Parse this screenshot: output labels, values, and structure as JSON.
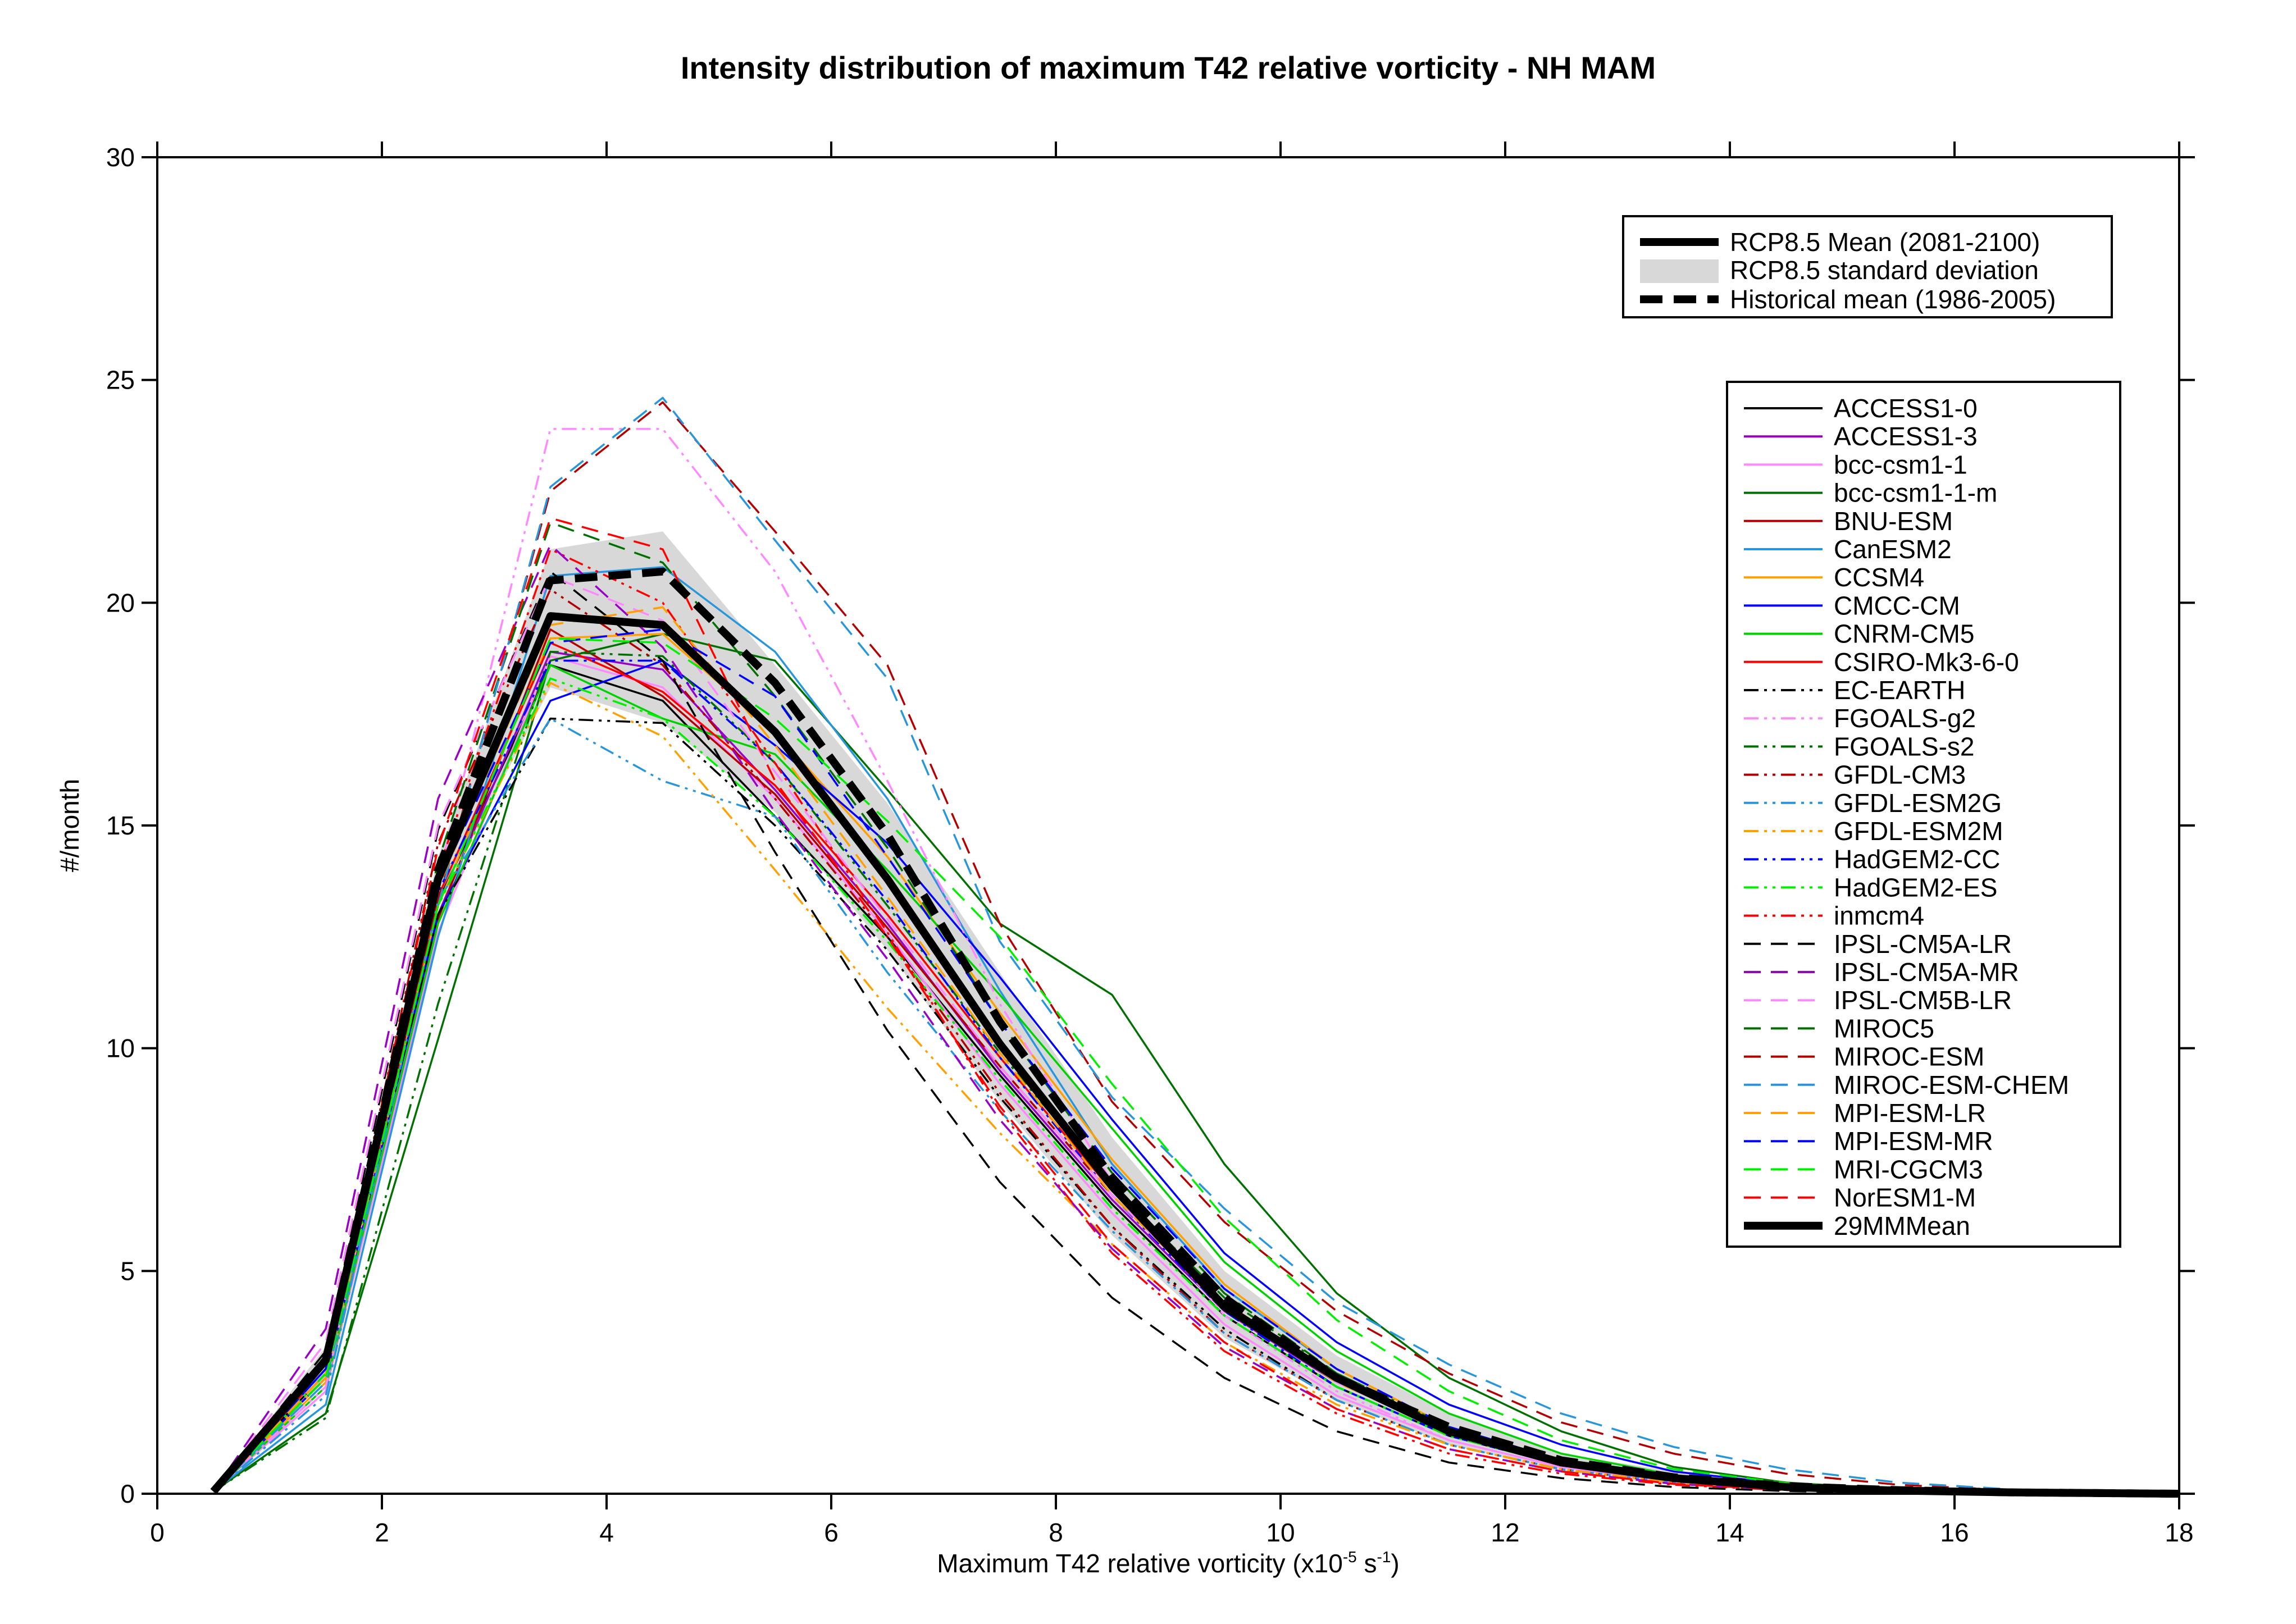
{
  "chart_data": {
    "type": "line",
    "title": "Intensity distribution of maximum T42 relative vorticity - NH MAM",
    "xlabel": "Maximum T42 relative vorticity (x10",
    "xlabel_exp1": "-5",
    "xlabel_mid": " s",
    "xlabel_exp2": "-1",
    "xlabel_end": ")",
    "ylabel": "#/month",
    "xlim": [
      0,
      18
    ],
    "ylim": [
      0,
      30
    ],
    "xticks": [
      0,
      2,
      4,
      6,
      8,
      10,
      12,
      14,
      16,
      18
    ],
    "yticks": [
      0,
      5,
      10,
      15,
      20,
      25,
      30
    ],
    "grid": false,
    "x": [
      0.5,
      1.5,
      2.5,
      3.5,
      4.5,
      5.5,
      6.5,
      7.5,
      8.5,
      9.5,
      10.5,
      11.5,
      12.5,
      13.5,
      14.5,
      15.5,
      16.5,
      17.5,
      18.0
    ],
    "std_band": {
      "label": "RCP8.5 standard deviation",
      "color": "#d8d8d8",
      "upper": [
        0.05,
        3.3,
        14.3,
        21.2,
        21.6,
        18.6,
        15.5,
        11.7,
        8.0,
        5.0,
        3.1,
        1.8,
        0.9,
        0.5,
        0.25,
        0.12,
        0.05,
        0.02,
        0.01
      ],
      "lower": [
        0.02,
        2.6,
        13.2,
        18.1,
        17.3,
        15.3,
        12.2,
        8.8,
        5.8,
        3.5,
        2.1,
        1.1,
        0.5,
        0.2,
        0.1,
        0.04,
        0.01,
        0.0,
        0.0
      ]
    },
    "historical_mean": {
      "label": "Historical mean (1986-2005)",
      "values": [
        0.05,
        3.0,
        14.0,
        20.5,
        20.7,
        18.2,
        14.8,
        10.6,
        7.1,
        4.4,
        2.6,
        1.5,
        0.75,
        0.37,
        0.17,
        0.08,
        0.03,
        0.01,
        0.0
      ]
    },
    "rcp_mean": {
      "label": "RCP8.5 Mean (2081-2100)",
      "values": [
        0.05,
        3.0,
        13.8,
        19.7,
        19.5,
        17.1,
        13.8,
        10.1,
        6.9,
        4.2,
        2.6,
        1.4,
        0.7,
        0.35,
        0.15,
        0.07,
        0.03,
        0.01,
        0.0
      ]
    },
    "legend_ensemble_title": "29MMMean",
    "series": [
      {
        "name": "ACCESS1-0",
        "color": "#000000",
        "dash": "solid",
        "values": [
          0.05,
          2.7,
          13.3,
          18.6,
          17.8,
          15.2,
          12.5,
          9.4,
          6.5,
          4.0,
          2.4,
          1.3,
          0.65,
          0.3,
          0.13,
          0.06,
          0.02,
          0.01,
          0.0
        ]
      },
      {
        "name": "ACCESS1-3",
        "color": "#9a00c8",
        "dash": "solid",
        "values": [
          0.05,
          2.6,
          13.0,
          18.9,
          18.5,
          15.8,
          12.8,
          9.5,
          6.6,
          4.1,
          2.5,
          1.4,
          0.7,
          0.32,
          0.14,
          0.06,
          0.02,
          0.01,
          0.0
        ]
      },
      {
        "name": "bcc-csm1-1",
        "color": "#ff88ff",
        "dash": "solid",
        "values": [
          0.05,
          2.3,
          12.6,
          18.8,
          18.1,
          15.6,
          12.6,
          9.2,
          6.3,
          3.8,
          2.2,
          1.2,
          0.6,
          0.28,
          0.12,
          0.05,
          0.02,
          0.01,
          0.0
        ]
      },
      {
        "name": "bcc-csm1-1-m",
        "color": "#007000",
        "dash": "solid",
        "values": [
          0.05,
          1.8,
          10.2,
          18.7,
          19.3,
          18.7,
          15.8,
          12.8,
          11.2,
          7.4,
          4.5,
          2.6,
          1.4,
          0.6,
          0.25,
          0.1,
          0.04,
          0.01,
          0.0
        ]
      },
      {
        "name": "BNU-ESM",
        "color": "#b40000",
        "dash": "solid",
        "values": [
          0.05,
          2.9,
          12.9,
          19.4,
          17.9,
          15.7,
          12.7,
          9.6,
          6.7,
          4.2,
          2.6,
          1.4,
          0.7,
          0.33,
          0.15,
          0.06,
          0.02,
          0.01,
          0.0
        ]
      },
      {
        "name": "CanESM2",
        "color": "#2896dc",
        "dash": "solid",
        "values": [
          0.05,
          2.0,
          12.5,
          20.6,
          20.8,
          18.9,
          15.6,
          11.3,
          7.4,
          4.6,
          2.8,
          1.5,
          0.75,
          0.35,
          0.15,
          0.07,
          0.02,
          0.01,
          0.0
        ]
      },
      {
        "name": "CCSM4",
        "color": "#ffa000",
        "dash": "solid",
        "values": [
          0.05,
          2.5,
          13.2,
          19.2,
          19.3,
          17.1,
          14.3,
          10.8,
          7.5,
          4.7,
          2.8,
          1.5,
          0.75,
          0.35,
          0.15,
          0.07,
          0.02,
          0.01,
          0.0
        ]
      },
      {
        "name": "CMCC-CM",
        "color": "#0000ff",
        "dash": "solid",
        "values": [
          0.05,
          2.6,
          13.0,
          17.8,
          18.7,
          16.8,
          14.6,
          11.6,
          8.4,
          5.4,
          3.4,
          2.0,
          1.1,
          0.5,
          0.22,
          0.1,
          0.04,
          0.01,
          0.0
        ]
      },
      {
        "name": "CNRM-CM5",
        "color": "#00d200",
        "dash": "solid",
        "values": [
          0.05,
          2.4,
          12.8,
          18.6,
          17.4,
          16.6,
          14.0,
          11.2,
          8.2,
          5.2,
          3.2,
          1.8,
          0.9,
          0.42,
          0.18,
          0.08,
          0.03,
          0.01,
          0.0
        ]
      },
      {
        "name": "CSIRO-Mk3-6-0",
        "color": "#ff0000",
        "dash": "solid",
        "values": [
          0.05,
          2.8,
          13.4,
          19.1,
          18.0,
          15.9,
          13.0,
          9.8,
          6.8,
          4.3,
          2.6,
          1.4,
          0.7,
          0.33,
          0.14,
          0.06,
          0.02,
          0.01,
          0.0
        ]
      },
      {
        "name": "EC-EARTH",
        "color": "#000000",
        "dash": "dashdotdot",
        "values": [
          0.05,
          2.7,
          13.0,
          17.4,
          17.3,
          15.0,
          12.2,
          8.9,
          6.0,
          3.7,
          2.1,
          1.1,
          0.55,
          0.25,
          0.1,
          0.04,
          0.01,
          0.0,
          0.0
        ]
      },
      {
        "name": "FGOALS-g2",
        "color": "#ff88ff",
        "dash": "dashdotdot",
        "values": [
          0.05,
          2.4,
          13.8,
          23.9,
          23.9,
          20.7,
          16.0,
          11.0,
          7.0,
          4.0,
          2.3,
          1.2,
          0.6,
          0.26,
          0.11,
          0.04,
          0.01,
          0.0,
          0.0
        ]
      },
      {
        "name": "FGOALS-s2",
        "color": "#007000",
        "dash": "dashdotdot",
        "values": [
          0.05,
          1.7,
          11.0,
          18.9,
          18.8,
          16.4,
          13.2,
          9.9,
          6.9,
          4.4,
          2.7,
          1.5,
          0.75,
          0.35,
          0.15,
          0.07,
          0.02,
          0.01,
          0.0
        ]
      },
      {
        "name": "GFDL-CM3",
        "color": "#b40000",
        "dash": "dashdotdot",
        "values": [
          0.05,
          3.0,
          14.6,
          20.3,
          18.6,
          15.6,
          12.5,
          9.0,
          6.0,
          3.6,
          2.1,
          1.1,
          0.55,
          0.25,
          0.1,
          0.04,
          0.01,
          0.0,
          0.0
        ]
      },
      {
        "name": "GFDL-ESM2G",
        "color": "#2896dc",
        "dash": "dashdotdot",
        "values": [
          0.05,
          2.2,
          13.3,
          17.4,
          16.0,
          15.2,
          11.7,
          8.6,
          5.9,
          3.6,
          2.1,
          1.1,
          0.55,
          0.25,
          0.1,
          0.04,
          0.01,
          0.0,
          0.0
        ]
      },
      {
        "name": "GFDL-ESM2M",
        "color": "#ffa000",
        "dash": "dashdotdot",
        "values": [
          0.05,
          2.6,
          13.2,
          18.2,
          17.0,
          14.0,
          10.9,
          8.1,
          5.6,
          3.4,
          2.0,
          1.1,
          0.55,
          0.25,
          0.1,
          0.04,
          0.01,
          0.0,
          0.0
        ]
      },
      {
        "name": "HadGEM2-CC",
        "color": "#0000ff",
        "dash": "dashdotdot",
        "values": [
          0.05,
          2.8,
          13.5,
          18.7,
          18.7,
          16.4,
          13.3,
          9.8,
          6.7,
          4.1,
          2.4,
          1.3,
          0.65,
          0.3,
          0.13,
          0.05,
          0.02,
          0.01,
          0.0
        ]
      },
      {
        "name": "HadGEM2-ES",
        "color": "#00f000",
        "dash": "dashdotdot",
        "values": [
          0.05,
          2.7,
          13.2,
          18.3,
          17.4,
          15.2,
          12.4,
          9.3,
          6.4,
          4.0,
          2.4,
          1.3,
          0.65,
          0.3,
          0.13,
          0.05,
          0.02,
          0.01,
          0.0
        ]
      },
      {
        "name": "inmcm4",
        "color": "#ff0000",
        "dash": "dashdotdot",
        "values": [
          0.05,
          2.9,
          14.0,
          21.2,
          20.0,
          16.4,
          12.6,
          8.6,
          5.4,
          3.2,
          1.8,
          0.9,
          0.45,
          0.2,
          0.08,
          0.03,
          0.01,
          0.0,
          0.0
        ]
      },
      {
        "name": "IPSL-CM5A-LR",
        "color": "#000000",
        "dash": "dashed",
        "values": [
          0.05,
          3.2,
          14.9,
          20.7,
          18.7,
          14.4,
          10.4,
          7.0,
          4.4,
          2.6,
          1.4,
          0.7,
          0.35,
          0.15,
          0.06,
          0.02,
          0.01,
          0.0,
          0.0
        ]
      },
      {
        "name": "IPSL-CM5A-MR",
        "color": "#9a00c8",
        "dash": "dashed",
        "values": [
          0.05,
          3.7,
          15.6,
          21.3,
          19.0,
          15.3,
          12.0,
          8.4,
          5.5,
          3.3,
          1.9,
          1.0,
          0.5,
          0.22,
          0.09,
          0.03,
          0.01,
          0.0,
          0.0
        ]
      },
      {
        "name": "IPSL-CM5B-LR",
        "color": "#ff88ff",
        "dash": "dashed",
        "values": [
          0.05,
          3.4,
          15.0,
          20.6,
          19.6,
          16.2,
          12.9,
          9.6,
          6.7,
          4.2,
          2.5,
          1.4,
          0.7,
          0.32,
          0.14,
          0.06,
          0.02,
          0.01,
          0.0
        ]
      },
      {
        "name": "MIROC5",
        "color": "#007000",
        "dash": "dashed",
        "values": [
          0.05,
          2.8,
          14.2,
          21.8,
          20.9,
          17.9,
          14.5,
          10.6,
          7.2,
          4.5,
          2.7,
          1.5,
          0.75,
          0.35,
          0.15,
          0.07,
          0.02,
          0.01,
          0.0
        ]
      },
      {
        "name": "MIROC-ESM",
        "color": "#b40000",
        "dash": "dashed",
        "values": [
          0.05,
          2.6,
          13.3,
          22.5,
          24.5,
          21.6,
          18.6,
          12.8,
          8.8,
          6.1,
          4.1,
          2.7,
          1.6,
          0.9,
          0.45,
          0.2,
          0.08,
          0.03,
          0.01
        ]
      },
      {
        "name": "MIROC-ESM-CHEM",
        "color": "#2896dc",
        "dash": "dashed",
        "values": [
          0.05,
          2.5,
          13.2,
          22.6,
          24.6,
          21.4,
          18.3,
          12.4,
          8.9,
          6.4,
          4.3,
          2.9,
          1.8,
          1.05,
          0.55,
          0.25,
          0.1,
          0.03,
          0.01
        ]
      },
      {
        "name": "MPI-ESM-LR",
        "color": "#ffa000",
        "dash": "dashed",
        "values": [
          0.05,
          2.7,
          13.6,
          19.5,
          19.9,
          16.8,
          13.4,
          9.9,
          6.7,
          4.2,
          2.5,
          1.4,
          0.7,
          0.32,
          0.14,
          0.06,
          0.02,
          0.01,
          0.0
        ]
      },
      {
        "name": "MPI-ESM-MR",
        "color": "#0000ff",
        "dash": "dashed",
        "values": [
          0.05,
          2.8,
          13.7,
          19.1,
          19.4,
          17.9,
          14.3,
          10.6,
          7.3,
          4.6,
          2.8,
          1.5,
          0.75,
          0.35,
          0.15,
          0.07,
          0.02,
          0.01,
          0.0
        ]
      },
      {
        "name": "MRI-CGCM3",
        "color": "#00f000",
        "dash": "dashed",
        "values": [
          0.05,
          2.6,
          13.2,
          19.2,
          19.1,
          17.4,
          15.1,
          12.5,
          9.2,
          6.2,
          3.9,
          2.3,
          1.2,
          0.55,
          0.24,
          0.1,
          0.04,
          0.01,
          0.0
        ]
      },
      {
        "name": "NorESM1-M",
        "color": "#ff0000",
        "dash": "dashed",
        "values": [
          0.05,
          3.0,
          14.5,
          21.9,
          21.2,
          16.0,
          12.5,
          8.7,
          5.6,
          3.4,
          1.9,
          1.0,
          0.5,
          0.22,
          0.09,
          0.03,
          0.01,
          0.0,
          0.0
        ]
      }
    ]
  }
}
